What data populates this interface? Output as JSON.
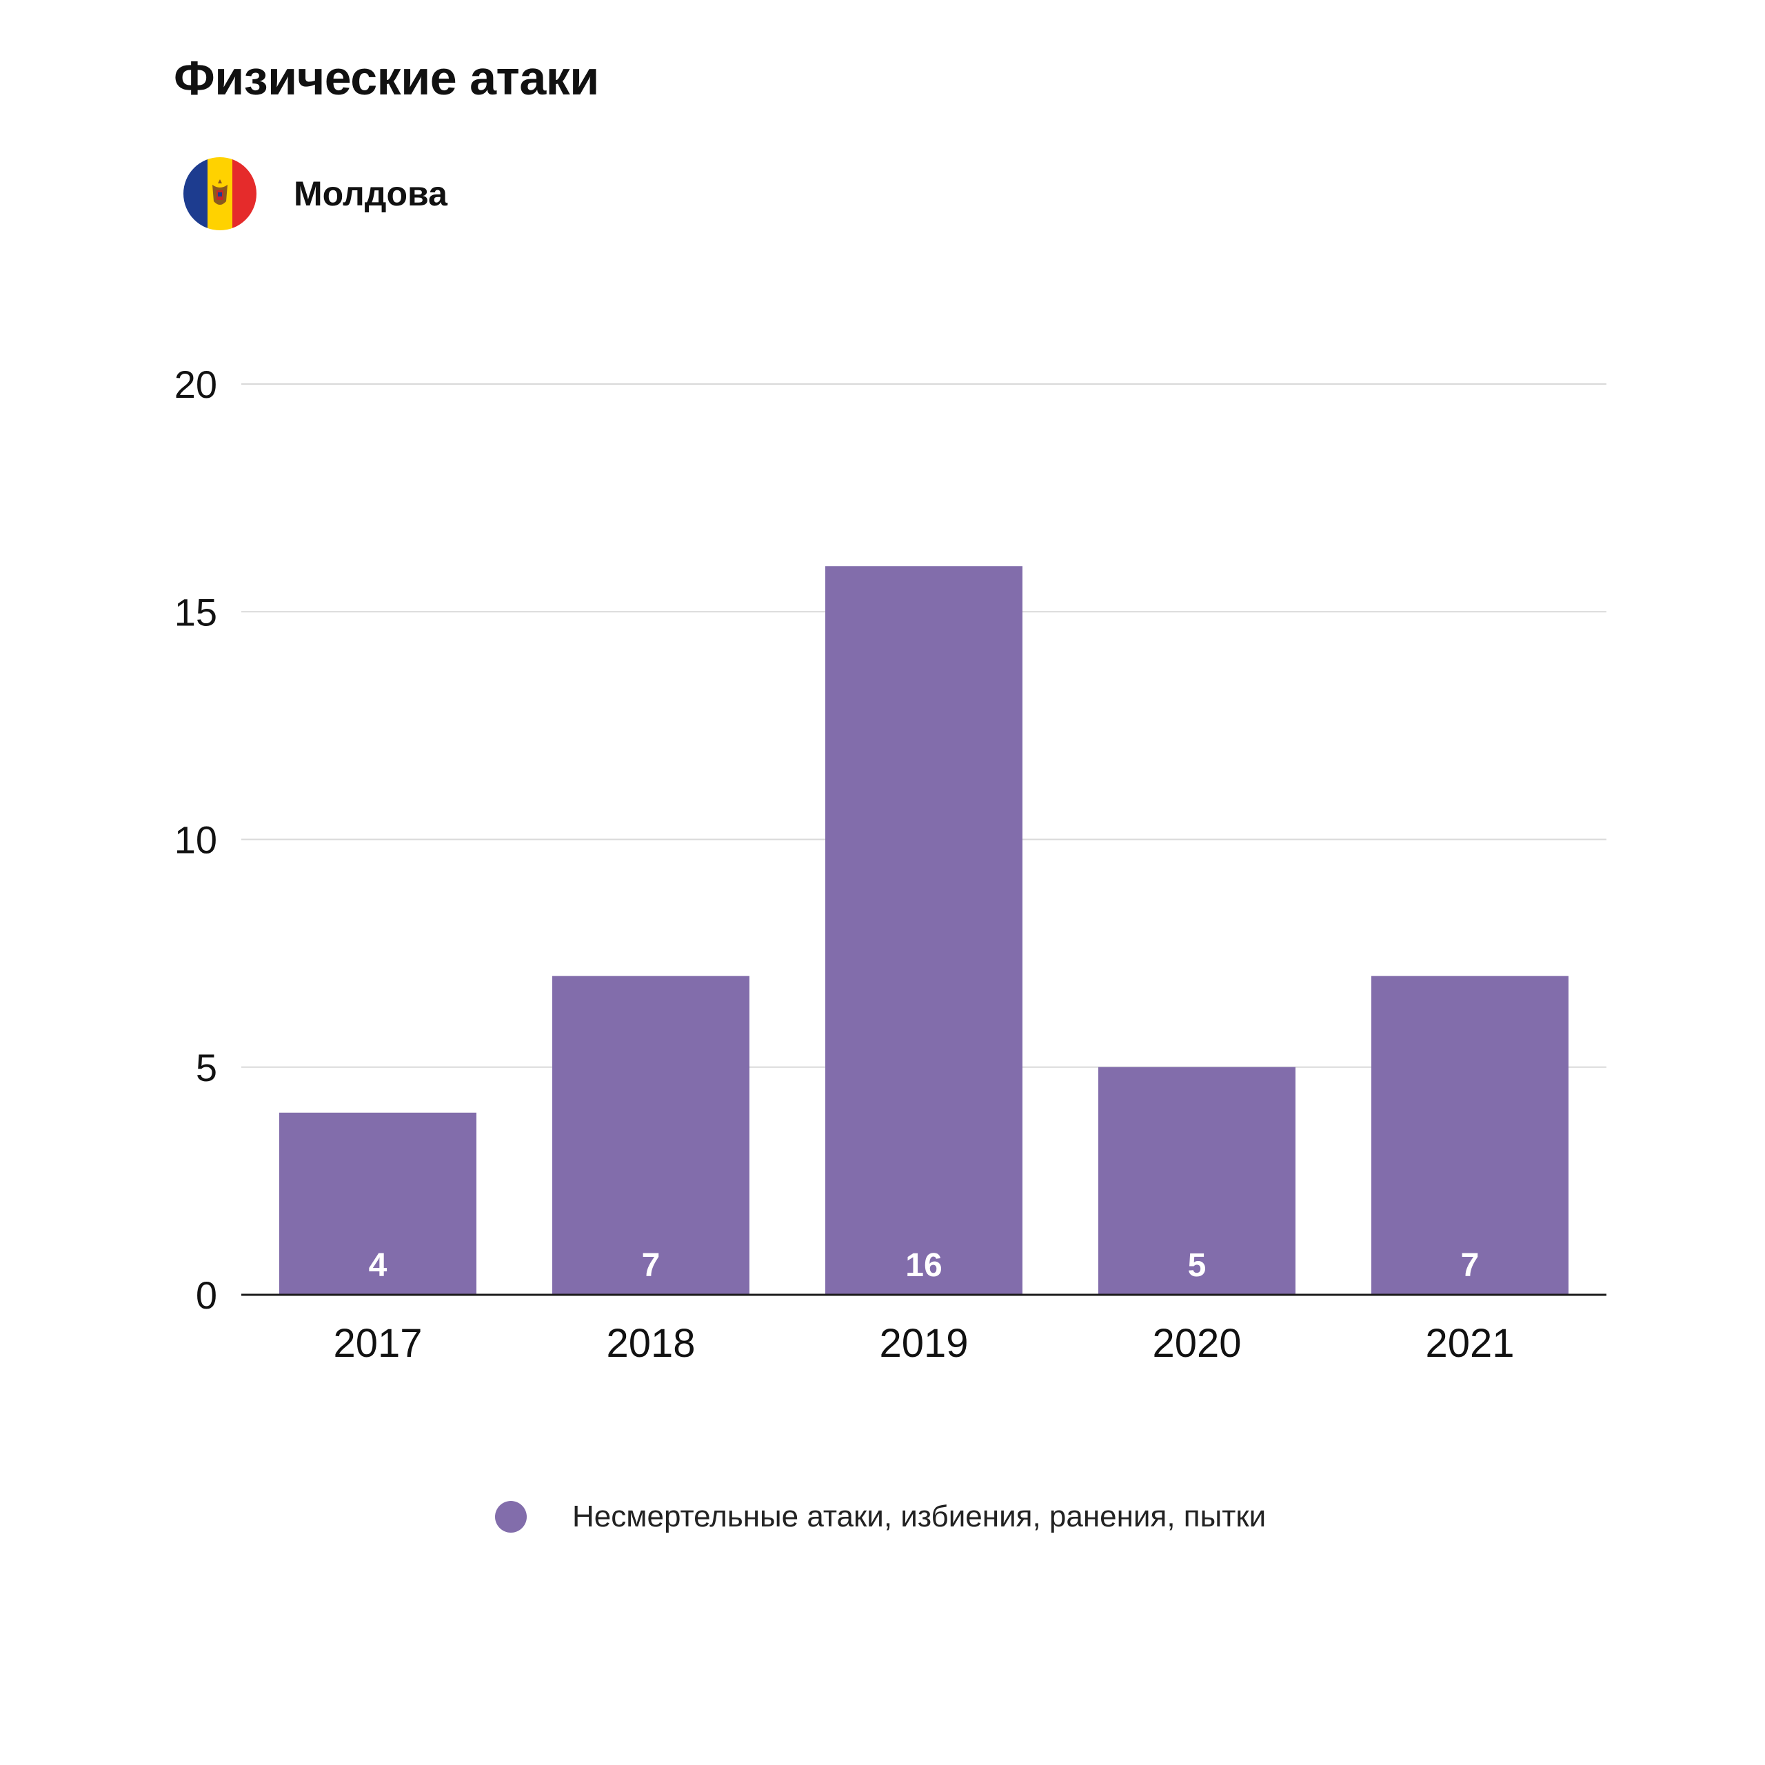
{
  "page": {
    "title": "Физические атаки",
    "country": "Молдова",
    "flag_colors": [
      "#1d3c8f",
      "#ffd200",
      "#e52b2b"
    ]
  },
  "chart_data": {
    "type": "bar",
    "title": "Физические атаки",
    "categories": [
      "2017",
      "2018",
      "2019",
      "2020",
      "2021"
    ],
    "series": [
      {
        "name": "Несмертельные атаки, избиения, ранения, пытки",
        "values": [
          4,
          7,
          16,
          5,
          7
        ],
        "color": "#826dab"
      }
    ],
    "data_labels": [
      "4",
      "7",
      "16",
      "5",
      "7"
    ],
    "ylim": [
      0,
      20
    ],
    "yticks": [
      0,
      5,
      10,
      15,
      20
    ],
    "grid": true,
    "legend_position": "bottom-center"
  }
}
